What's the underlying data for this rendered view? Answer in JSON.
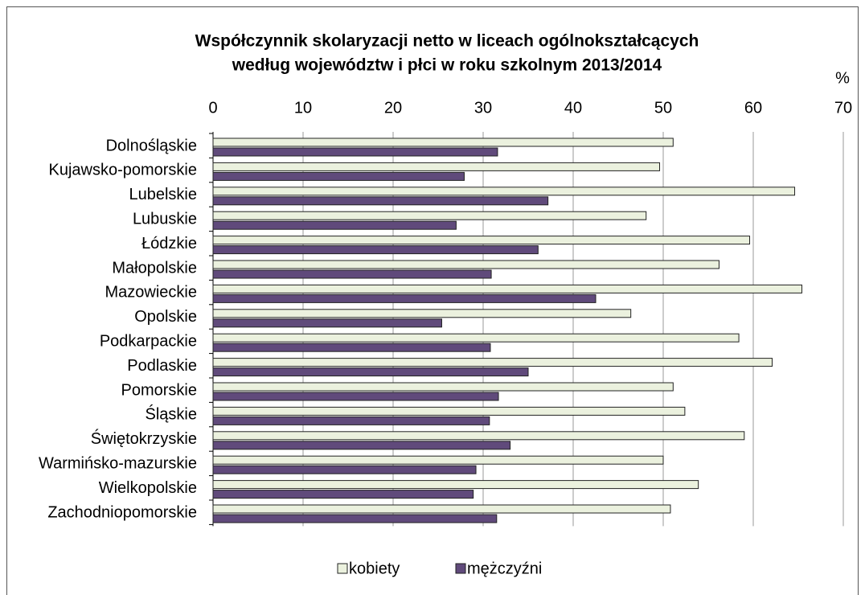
{
  "chart_data": {
    "type": "hbar",
    "title": [
      "Współczynnik skolaryzacji netto w liceach ogólnokształcących",
      "według województw i płci w roku szkolnym 2013/2014"
    ],
    "value_axis_label": "%",
    "categories": [
      "Dolnośląskie",
      "Kujawsko-pomorskie",
      "Lubelskie",
      "Lubuskie",
      "Łódzkie",
      "Małopolskie",
      "Mazowieckie",
      "Opolskie",
      "Podkarpackie",
      "Podlaskie",
      "Pomorskie",
      "Śląskie",
      "Świętokrzyskie",
      "Warmińsko-mazurskie",
      "Wielkopolskie",
      "Zachodniopomorskie"
    ],
    "series": [
      {
        "name": "kobiety",
        "color": "#ebf1de",
        "values": [
          51.1,
          49.6,
          64.6,
          48.1,
          59.6,
          56.2,
          65.4,
          46.4,
          58.4,
          62.1,
          51.1,
          52.4,
          59.0,
          50.0,
          53.9,
          50.8
        ]
      },
      {
        "name": "mężczyźni",
        "color": "#604a7b",
        "values": [
          31.6,
          27.9,
          37.2,
          27.0,
          36.1,
          30.9,
          42.5,
          25.4,
          30.8,
          35.0,
          31.7,
          30.7,
          33.0,
          29.2,
          28.9,
          31.5
        ]
      }
    ],
    "xlim": [
      0,
      70
    ],
    "xticks": [
      0,
      10,
      20,
      30,
      40,
      50,
      60,
      70
    ],
    "grid": true,
    "legend": "bottom"
  }
}
